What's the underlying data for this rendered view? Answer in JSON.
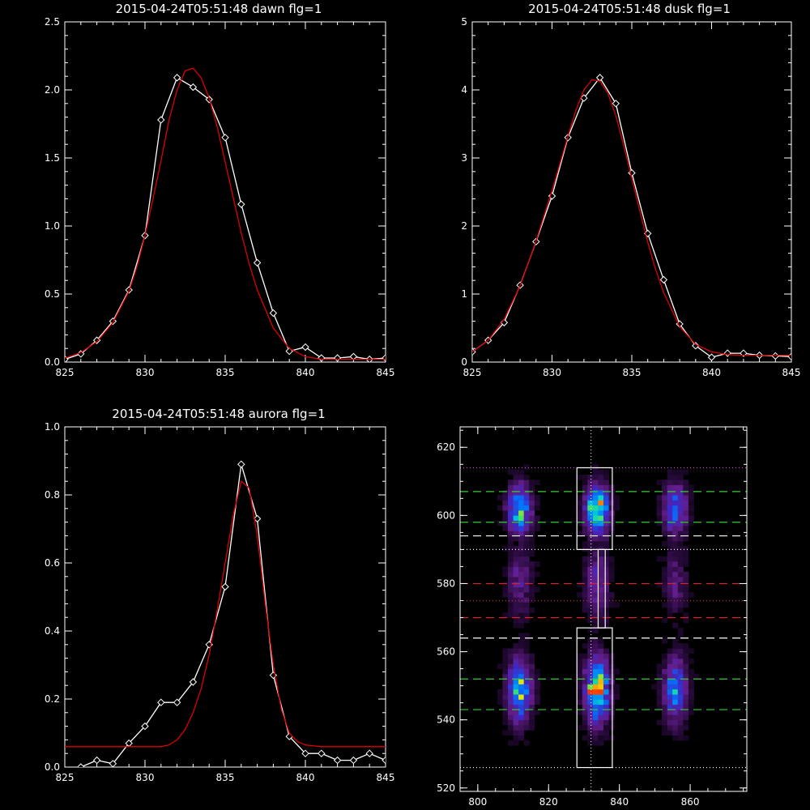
{
  "chart_data": [
    {
      "type": "line",
      "title": "2015-04-24T05:51:48 dawn flg=1",
      "xlim": [
        825,
        845
      ],
      "ylim": [
        0,
        2.5
      ],
      "x_ticks": [
        "825",
        "830",
        "835",
        "840",
        "845"
      ],
      "y_ticks": [
        "0.0",
        "0.5",
        "1.0",
        "1.5",
        "2.0",
        "2.5"
      ],
      "x_tick_values": [
        825,
        830,
        835,
        840,
        845
      ],
      "y_tick_values": [
        0,
        0.5,
        1.0,
        1.5,
        2.0,
        2.5
      ],
      "series": [
        {
          "color": "#ffffff",
          "markers": "diamond",
          "x": [
            825,
            826,
            827,
            828,
            829,
            830,
            831,
            832,
            833,
            834,
            835,
            836,
            837,
            838,
            839,
            840,
            841,
            842,
            843,
            844,
            845
          ],
          "y": [
            0.02,
            0.06,
            0.16,
            0.3,
            0.53,
            0.93,
            1.78,
            2.09,
            2.02,
            1.93,
            1.65,
            1.16,
            0.73,
            0.36,
            0.08,
            0.11,
            0.03,
            0.03,
            0.04,
            0.02,
            0.03
          ]
        },
        {
          "color": "#dd0000",
          "markers": "none",
          "x": [
            825,
            826,
            827,
            828,
            829,
            829.5,
            830,
            830.5,
            831,
            831.5,
            832,
            832.5,
            833,
            833.5,
            834,
            834.5,
            835,
            835.5,
            836,
            836.5,
            837,
            838,
            839,
            840,
            841,
            842,
            843,
            844,
            845
          ],
          "y": [
            0.03,
            0.07,
            0.15,
            0.29,
            0.52,
            0.7,
            0.93,
            1.2,
            1.48,
            1.78,
            2.0,
            2.14,
            2.16,
            2.09,
            1.94,
            1.73,
            1.47,
            1.21,
            0.95,
            0.72,
            0.53,
            0.25,
            0.1,
            0.04,
            0.02,
            0.02,
            0.02,
            0.02,
            0.02
          ]
        }
      ]
    },
    {
      "type": "line",
      "title": "2015-04-24T05:51:48 dusk flg=1",
      "xlim": [
        825,
        845
      ],
      "ylim": [
        0,
        5
      ],
      "x_ticks": [
        "825",
        "830",
        "835",
        "840",
        "845"
      ],
      "y_ticks": [
        "0",
        "1",
        "2",
        "3",
        "4",
        "5"
      ],
      "x_tick_values": [
        825,
        830,
        835,
        840,
        845
      ],
      "y_tick_values": [
        0,
        1,
        2,
        3,
        4,
        5
      ],
      "series": [
        {
          "color": "#ffffff",
          "markers": "diamond",
          "x": [
            825,
            826,
            827,
            828,
            829,
            830,
            831,
            832,
            833,
            834,
            835,
            836,
            837,
            838,
            839,
            840,
            841,
            842,
            843,
            844,
            845
          ],
          "y": [
            0.15,
            0.32,
            0.58,
            1.13,
            1.77,
            2.44,
            3.3,
            3.88,
            4.18,
            3.8,
            2.78,
            1.89,
            1.21,
            0.56,
            0.24,
            0.07,
            0.13,
            0.13,
            0.1,
            0.09,
            0.08
          ]
        },
        {
          "color": "#dd0000",
          "markers": "none",
          "x": [
            825,
            826,
            827,
            828,
            829,
            830,
            830.5,
            831,
            831.5,
            832,
            832.5,
            833,
            833.5,
            834,
            834.5,
            835,
            835.5,
            836,
            836.5,
            837,
            838,
            839,
            840,
            841,
            842,
            843,
            844,
            845
          ],
          "y": [
            0.15,
            0.32,
            0.63,
            1.12,
            1.78,
            2.52,
            2.92,
            3.32,
            3.7,
            4.0,
            4.15,
            4.13,
            3.95,
            3.62,
            3.18,
            2.7,
            2.22,
            1.76,
            1.36,
            1.02,
            0.52,
            0.26,
            0.15,
            0.11,
            0.1,
            0.1,
            0.1,
            0.1
          ]
        }
      ]
    },
    {
      "type": "line",
      "title": "2015-04-24T05:51:48 aurora flg=1",
      "xlim": [
        825,
        845
      ],
      "ylim": [
        0,
        1.0
      ],
      "x_ticks": [
        "825",
        "830",
        "835",
        "840",
        "845"
      ],
      "y_ticks": [
        "0.0",
        "0.2",
        "0.4",
        "0.6",
        "0.8",
        "1.0"
      ],
      "x_tick_values": [
        825,
        830,
        835,
        840,
        845
      ],
      "y_tick_values": [
        0,
        0.2,
        0.4,
        0.6,
        0.8,
        1.0
      ],
      "series": [
        {
          "color": "#ffffff",
          "markers": "diamond",
          "x": [
            826,
            827,
            828,
            829,
            830,
            831,
            832,
            833,
            834,
            835,
            836,
            837,
            838,
            839,
            840,
            841,
            842,
            843,
            844,
            845
          ],
          "y": [
            0.0,
            0.02,
            0.01,
            0.07,
            0.12,
            0.19,
            0.19,
            0.25,
            0.36,
            0.53,
            0.89,
            0.73,
            0.27,
            0.09,
            0.04,
            0.04,
            0.02,
            0.02,
            0.04,
            0.02
          ]
        },
        {
          "color": "#dd0000",
          "markers": "none",
          "x": [
            825,
            826,
            827,
            828,
            829,
            830,
            831,
            831.5,
            832,
            832.5,
            833,
            833.5,
            834,
            834.5,
            835,
            835.5,
            836,
            836.5,
            837,
            837.5,
            838,
            838.5,
            839,
            839.5,
            840,
            841,
            842,
            843,
            844,
            845
          ],
          "y": [
            0.06,
            0.06,
            0.06,
            0.06,
            0.06,
            0.06,
            0.06,
            0.065,
            0.08,
            0.11,
            0.16,
            0.23,
            0.33,
            0.46,
            0.6,
            0.74,
            0.84,
            0.82,
            0.68,
            0.48,
            0.3,
            0.17,
            0.1,
            0.075,
            0.065,
            0.06,
            0.06,
            0.06,
            0.06,
            0.06
          ]
        }
      ]
    },
    {
      "type": "heatmap",
      "xlim": [
        795,
        876
      ],
      "ylim": [
        519,
        626
      ],
      "x_ticks": [
        "800",
        "820",
        "840",
        "860"
      ],
      "y_ticks": [
        "520",
        "540",
        "560",
        "580",
        "600",
        "620"
      ],
      "x_tick_values": [
        800,
        820,
        840,
        860
      ],
      "y_tick_values": [
        520,
        540,
        560,
        580,
        600,
        620
      ],
      "columns_x": [
        811,
        833,
        855
      ],
      "vertical_line_x": 832,
      "hot_spot": {
        "x": 832,
        "y": 548
      },
      "boxes": [
        {
          "x0": 828,
          "x1": 838,
          "y0": 590,
          "y1": 614
        },
        {
          "x0": 834,
          "x1": 836,
          "y0": 567,
          "y1": 590
        },
        {
          "x0": 828,
          "x1": 838,
          "y0": 526,
          "y1": 567
        }
      ],
      "hlines": [
        {
          "y": 614,
          "style": "dotted",
          "color": "#cc44cc"
        },
        {
          "y": 607,
          "style": "dashed",
          "color": "#33cc33"
        },
        {
          "y": 598,
          "style": "dashed",
          "color": "#33cc33"
        },
        {
          "y": 594,
          "style": "dashed",
          "color": "#ffffff"
        },
        {
          "y": 590,
          "style": "dotted",
          "color": "#ffffff"
        },
        {
          "y": 580,
          "style": "dashed",
          "color": "#dd2222"
        },
        {
          "y": 575,
          "style": "dotted",
          "color": "#aa3333"
        },
        {
          "y": 570,
          "style": "dashed",
          "color": "#dd2222"
        },
        {
          "y": 564,
          "style": "dashed",
          "color": "#ffffff"
        },
        {
          "y": 552,
          "style": "dashed",
          "color": "#33cc33"
        },
        {
          "y": 543,
          "style": "dashed",
          "color": "#33cc33"
        },
        {
          "y": 526,
          "style": "dotted",
          "color": "#ffffff"
        }
      ]
    }
  ]
}
